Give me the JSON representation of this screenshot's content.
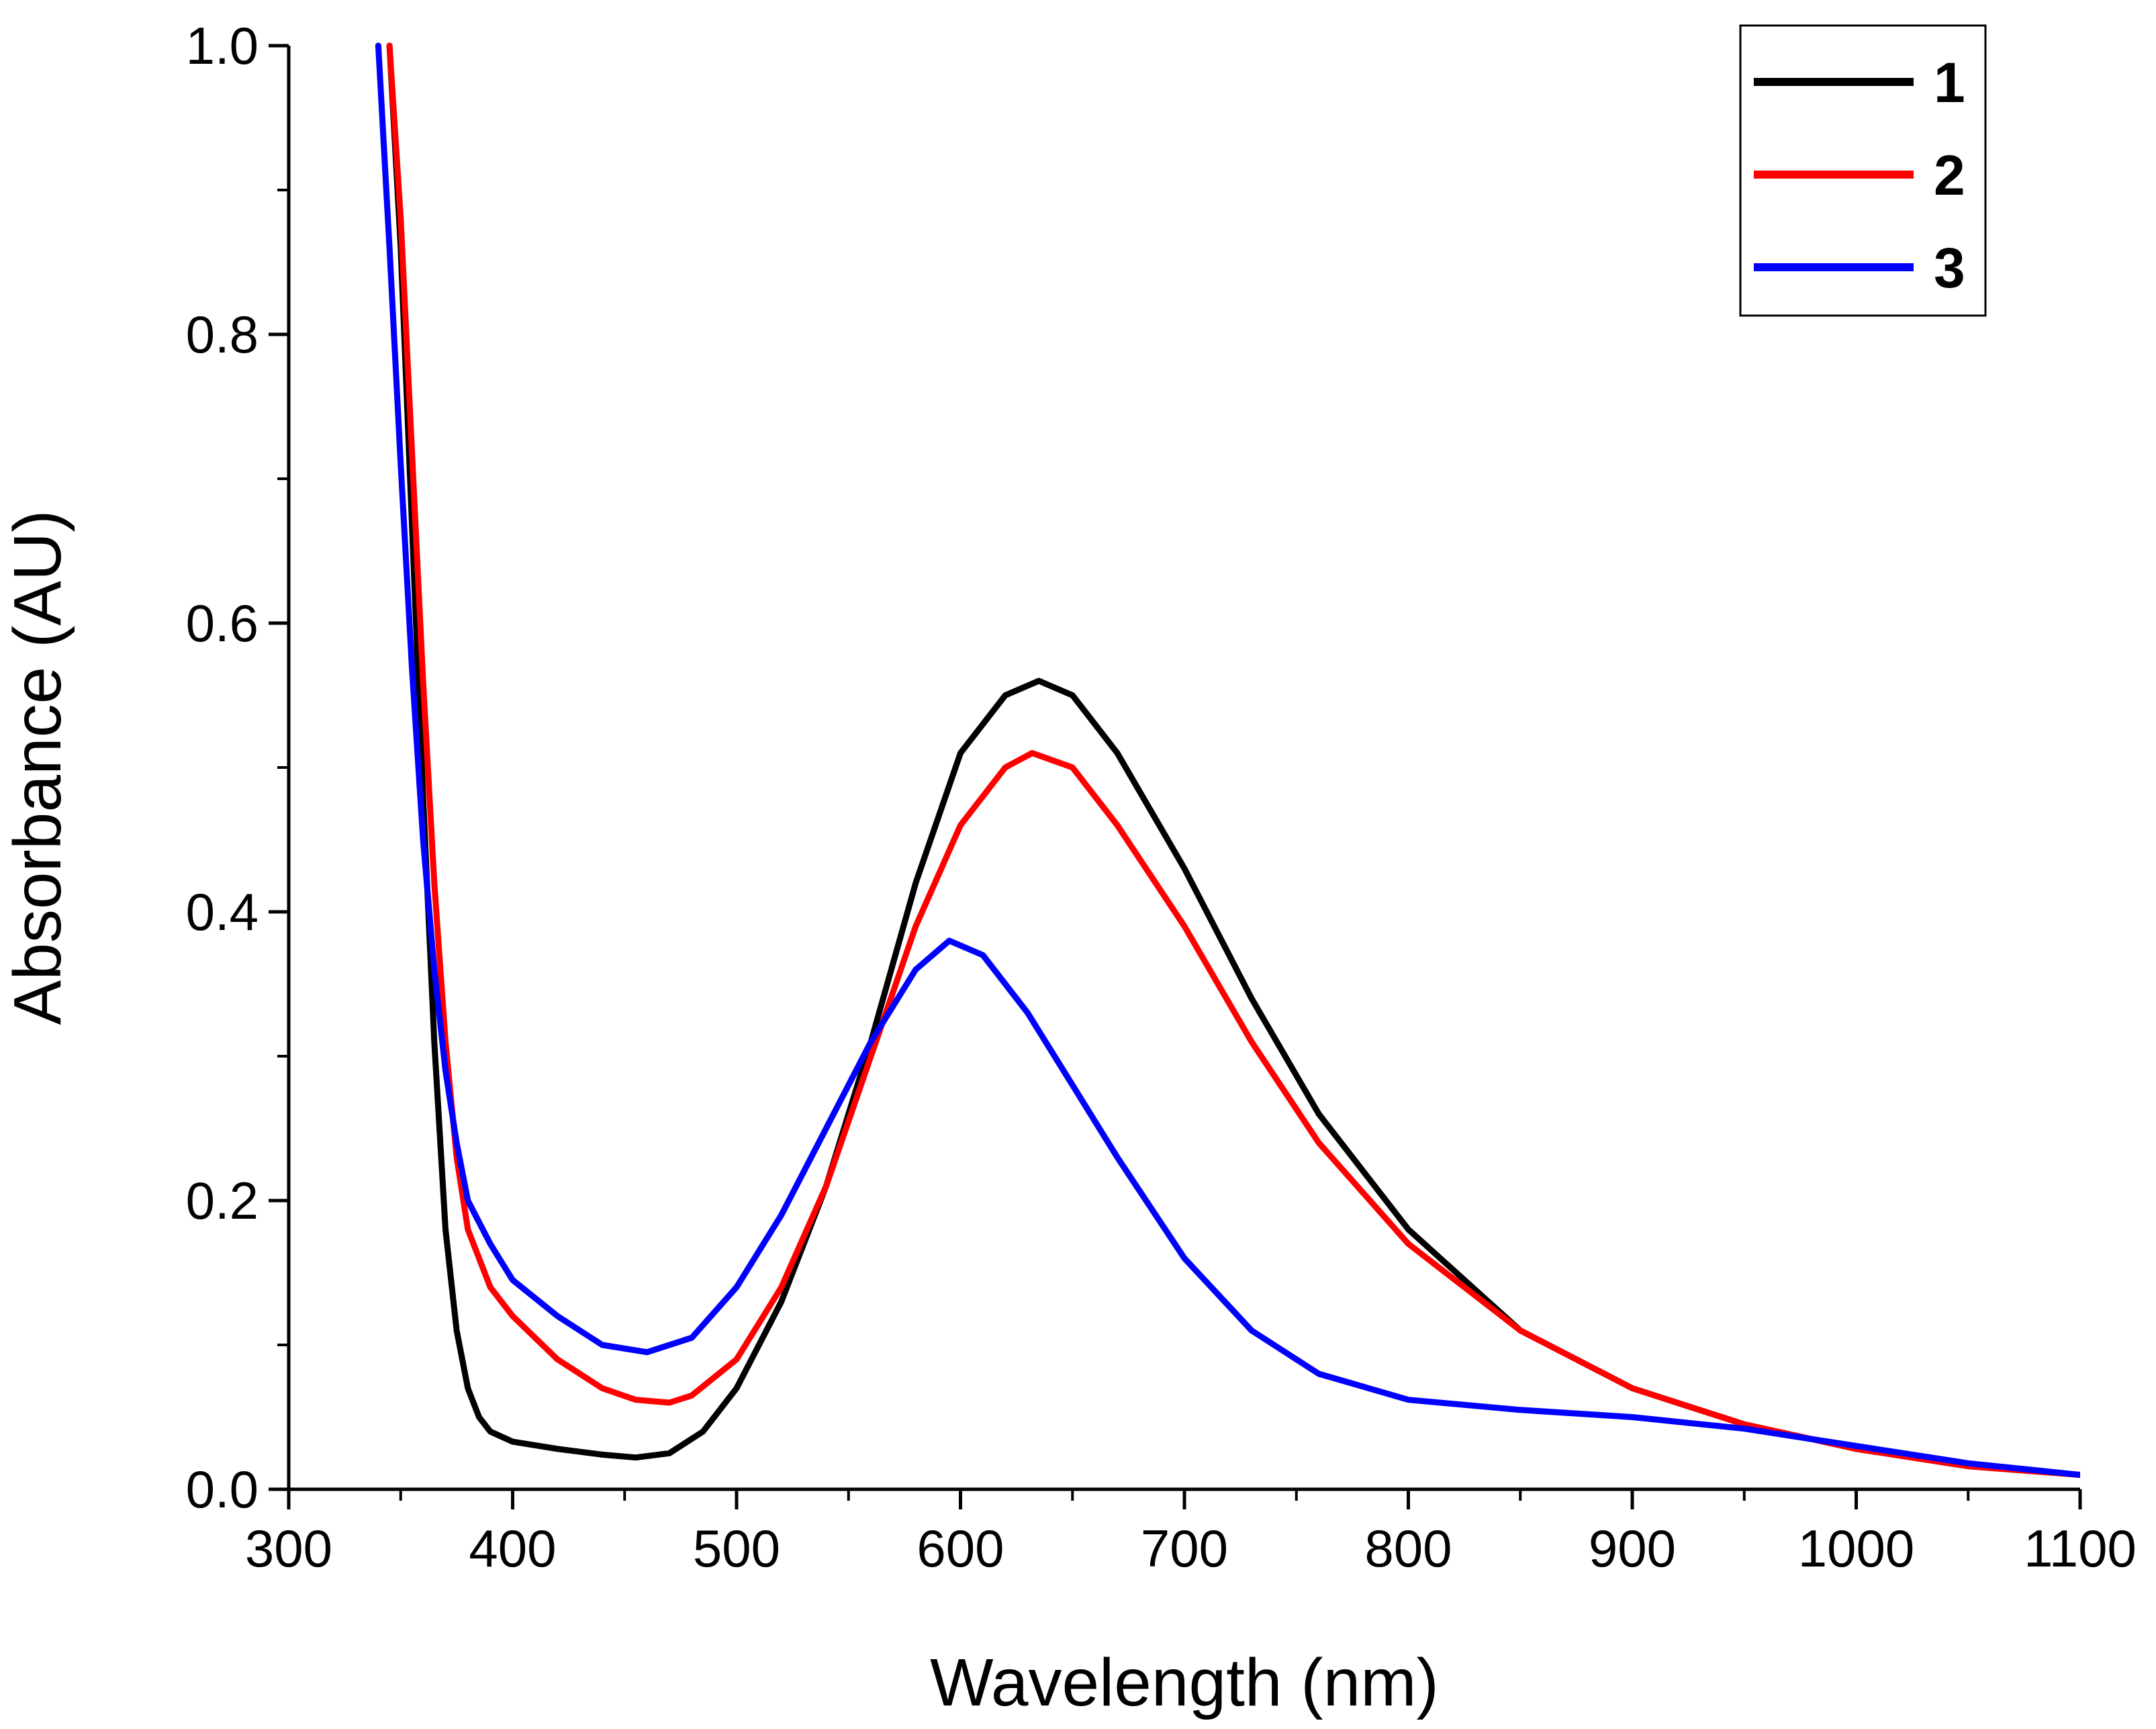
{
  "chart_data": {
    "type": "line",
    "title": "",
    "xlabel": "Wavelength (nm)",
    "ylabel": "Absorbance (AU)",
    "xlim": [
      300,
      1100
    ],
    "ylim": [
      0.0,
      1.0
    ],
    "x_ticks": [
      300,
      400,
      500,
      600,
      700,
      800,
      900,
      1000,
      1100
    ],
    "x_tick_labels": [
      "300",
      "400",
      "500",
      "600",
      "700",
      "800",
      "900",
      "1000",
      "1100"
    ],
    "y_ticks": [
      0.0,
      0.2,
      0.4,
      0.6,
      0.8,
      1.0
    ],
    "y_tick_labels": [
      "0.0",
      "0.2",
      "0.4",
      "0.6",
      "0.8",
      "1.0"
    ],
    "grid": false,
    "legend_position": "top-right",
    "series": [
      {
        "name": "1",
        "color": "#000000",
        "x": [
          345,
          350,
          355,
          360,
          365,
          370,
          375,
          380,
          385,
          390,
          400,
          420,
          440,
          455,
          470,
          485,
          500,
          520,
          540,
          560,
          580,
          600,
          620,
          635,
          650,
          670,
          700,
          730,
          760,
          800,
          850,
          900,
          950,
          1000,
          1050,
          1100
        ],
        "y": [
          1.0,
          0.86,
          0.67,
          0.48,
          0.31,
          0.18,
          0.11,
          0.07,
          0.05,
          0.04,
          0.033,
          0.028,
          0.024,
          0.022,
          0.025,
          0.04,
          0.07,
          0.13,
          0.21,
          0.31,
          0.42,
          0.51,
          0.55,
          0.56,
          0.55,
          0.51,
          0.43,
          0.34,
          0.26,
          0.18,
          0.11,
          0.07,
          0.045,
          0.028,
          0.016,
          0.01
        ]
      },
      {
        "name": "2",
        "color": "#ff0000",
        "x": [
          345,
          350,
          355,
          360,
          365,
          370,
          375,
          380,
          390,
          400,
          420,
          440,
          455,
          470,
          480,
          500,
          520,
          540,
          560,
          580,
          600,
          620,
          632,
          650,
          670,
          700,
          730,
          760,
          800,
          850,
          900,
          950,
          1000,
          1050,
          1100
        ],
        "y": [
          1.0,
          0.88,
          0.72,
          0.56,
          0.42,
          0.31,
          0.23,
          0.18,
          0.14,
          0.12,
          0.09,
          0.07,
          0.062,
          0.06,
          0.065,
          0.09,
          0.14,
          0.21,
          0.3,
          0.39,
          0.46,
          0.5,
          0.51,
          0.5,
          0.46,
          0.39,
          0.31,
          0.24,
          0.17,
          0.11,
          0.07,
          0.045,
          0.028,
          0.016,
          0.01
        ]
      },
      {
        "name": "3",
        "color": "#0000ff",
        "x": [
          340,
          345,
          350,
          355,
          360,
          365,
          370,
          375,
          380,
          390,
          400,
          420,
          440,
          460,
          480,
          500,
          520,
          540,
          560,
          580,
          595,
          610,
          630,
          650,
          670,
          700,
          730,
          760,
          800,
          850,
          900,
          950,
          1000,
          1050,
          1100
        ],
        "y": [
          1.0,
          0.86,
          0.71,
          0.57,
          0.45,
          0.36,
          0.29,
          0.24,
          0.2,
          0.17,
          0.145,
          0.12,
          0.1,
          0.095,
          0.105,
          0.14,
          0.19,
          0.25,
          0.31,
          0.36,
          0.38,
          0.37,
          0.33,
          0.28,
          0.23,
          0.16,
          0.11,
          0.08,
          0.062,
          0.055,
          0.05,
          0.042,
          0.03,
          0.018,
          0.01
        ]
      }
    ]
  }
}
